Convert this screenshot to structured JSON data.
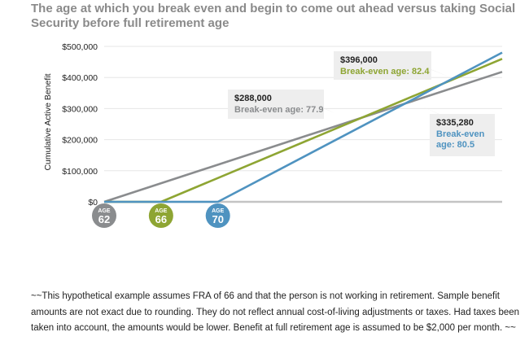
{
  "title": "The age at which you break even and begin to come out ahead versus taking Social Security before full retirement age",
  "footnote": "~~This hypothetical example assumes FRA of 66 and that the person is not working in retirement. Sample benefit amounts are not exact due to rounding. They do not reflect annual cost-of-living adjustments or taxes. Had taxes been taken into account, the amounts would be lower. Benefit at full retirement age is assumed to be $2,000 per month. ~~",
  "chart_data": {
    "type": "line",
    "ylabel": "Cumulative Active Benefit",
    "ylim": [
      0,
      500000
    ],
    "y_ticks": [
      {
        "value": 0,
        "label": "$0"
      },
      {
        "value": 100000,
        "label": "$100,000"
      },
      {
        "value": 200000,
        "label": "$200,000"
      },
      {
        "value": 300000,
        "label": "$300,000"
      },
      {
        "value": 400000,
        "label": "$400,000"
      },
      {
        "value": 500000,
        "label": "$500,000"
      }
    ],
    "xlim": [
      62,
      90
    ],
    "grid": true,
    "series": [
      {
        "age": 62,
        "color": "#8a8c8e",
        "points": [
          [
            62,
            0
          ],
          [
            90,
            418000
          ]
        ]
      },
      {
        "age": 66,
        "color": "#8ea533",
        "points": [
          [
            62,
            0
          ],
          [
            66,
            0
          ],
          [
            90,
            460000
          ]
        ]
      },
      {
        "age": 70,
        "color": "#4f93c0",
        "points": [
          [
            62,
            0
          ],
          [
            70,
            0
          ],
          [
            90,
            480000
          ]
        ]
      }
    ],
    "age_badges": [
      {
        "top": "AGE",
        "num": "62",
        "age": 62,
        "color": "#8a8c8e"
      },
      {
        "top": "AGE",
        "num": "66",
        "age": 66,
        "color": "#8ea533"
      },
      {
        "top": "AGE",
        "num": "70",
        "age": 70,
        "color": "#4f93c0"
      }
    ],
    "annotations": [
      {
        "amount": "$288,000",
        "lines": [
          "Break-even age: 77.9"
        ],
        "color": "#8a8c8e",
        "point": [
          77.9,
          288000
        ]
      },
      {
        "amount": "$396,000",
        "lines": [
          "Break-even age: 82.4"
        ],
        "color": "#8ea533",
        "point": [
          82.4,
          396000
        ]
      },
      {
        "amount": "$335,280",
        "lines": [
          "Break-even",
          "age: 80.5"
        ],
        "color": "#4f93c0",
        "point": [
          80.5,
          335280
        ]
      }
    ]
  }
}
